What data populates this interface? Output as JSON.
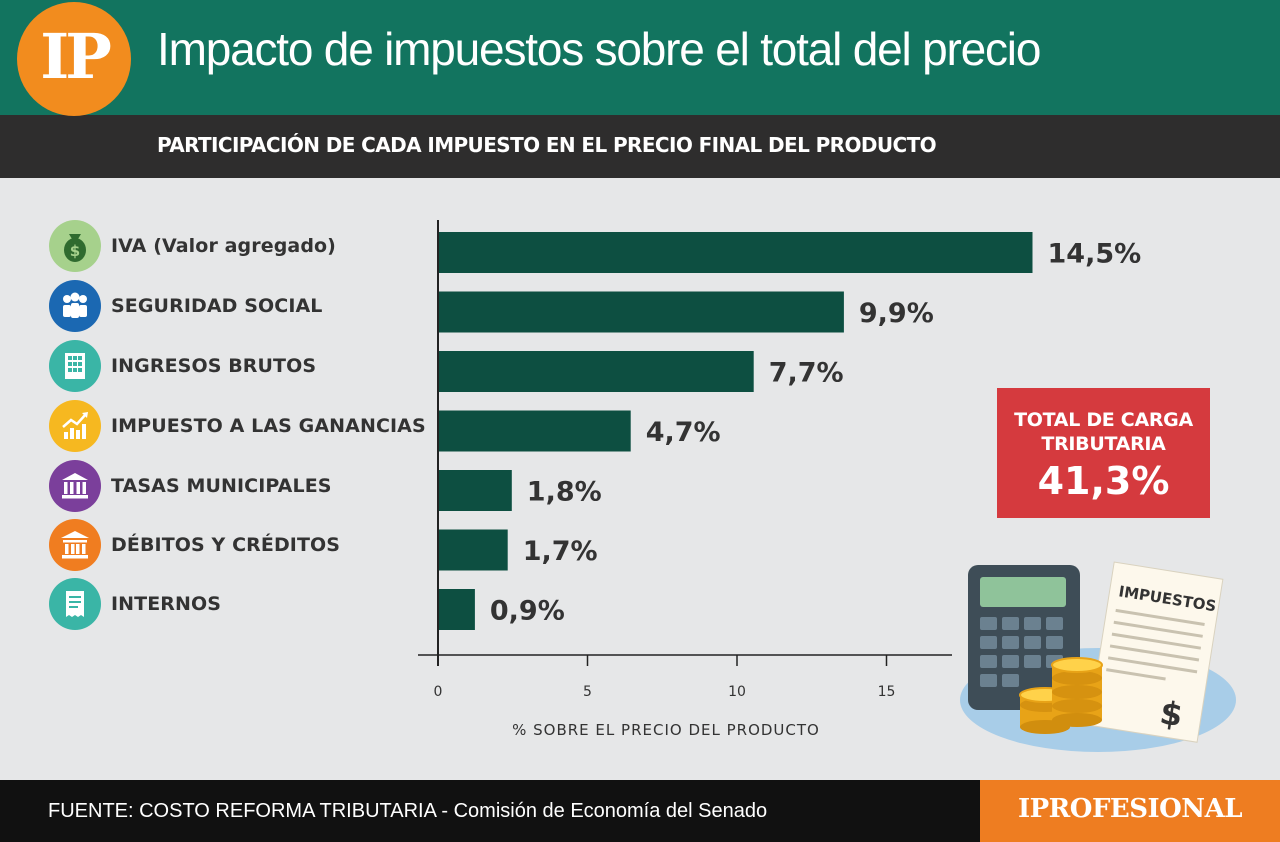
{
  "header": {
    "logo_text": "IP",
    "title": "Impacto de impuestos sobre el total del precio",
    "subtitle": "PARTICIPACIÓN DE CADA IMPUESTO EN EL PRECIO FINAL DEL PRODUCTO"
  },
  "categories": [
    {
      "label": "IVA (Valor agregado)",
      "icon": "money-bag-icon",
      "color": "#a6d18c"
    },
    {
      "label": "SEGURIDAD SOCIAL",
      "icon": "people-icon",
      "color": "#1b68b2"
    },
    {
      "label": "INGRESOS BRUTOS",
      "icon": "building-icon",
      "color": "#3ab5a6"
    },
    {
      "label": "IMPUESTO A LAS GANANCIAS",
      "icon": "growth-chart-icon",
      "color": "#f6b820"
    },
    {
      "label": "TASAS MUNICIPALES",
      "icon": "municipal-building-icon",
      "color": "#7b3f9b"
    },
    {
      "label": "DÉBITOS Y CRÉDITOS",
      "icon": "bank-icon",
      "color": "#f07d20"
    },
    {
      "label": "INTERNOS",
      "icon": "receipt-icon",
      "color": "#3ab5a6"
    }
  ],
  "chart_data": {
    "type": "bar",
    "orientation": "horizontal",
    "categories": [
      "IVA (Valor agregado)",
      "SEGURIDAD SOCIAL",
      "INGRESOS BRUTOS",
      "IMPUESTO A LAS GANANCIAS",
      "TASAS MUNICIPALES",
      "DÉBITOS Y CRÉDITOS",
      "INTERNOS"
    ],
    "values": [
      14.5,
      9.9,
      7.7,
      4.7,
      1.8,
      1.7,
      0.9
    ],
    "value_labels": [
      "14,5%",
      "9,9%",
      "7,7%",
      "4,7%",
      "1,8%",
      "1,7%",
      "0,9%"
    ],
    "xticks": [
      "0",
      "5",
      "10",
      "15"
    ],
    "xlabel": "% SOBRE EL PRECIO DEL PRODUCTO",
    "xlim": [
      0,
      17
    ],
    "bar_color": "#0d4f41",
    "grid": false
  },
  "total": {
    "label": "TOTAL DE CARGA TRIBUTARIA",
    "value": "41,3%"
  },
  "illustration": {
    "document_label": "IMPUESTOS",
    "currency_symbol": "$"
  },
  "footer": {
    "source_text": "FUENTE: COSTO REFORMA TRIBUTARIA - Comisión de Economía del Senado",
    "brand": "IPROFESIONAL"
  }
}
